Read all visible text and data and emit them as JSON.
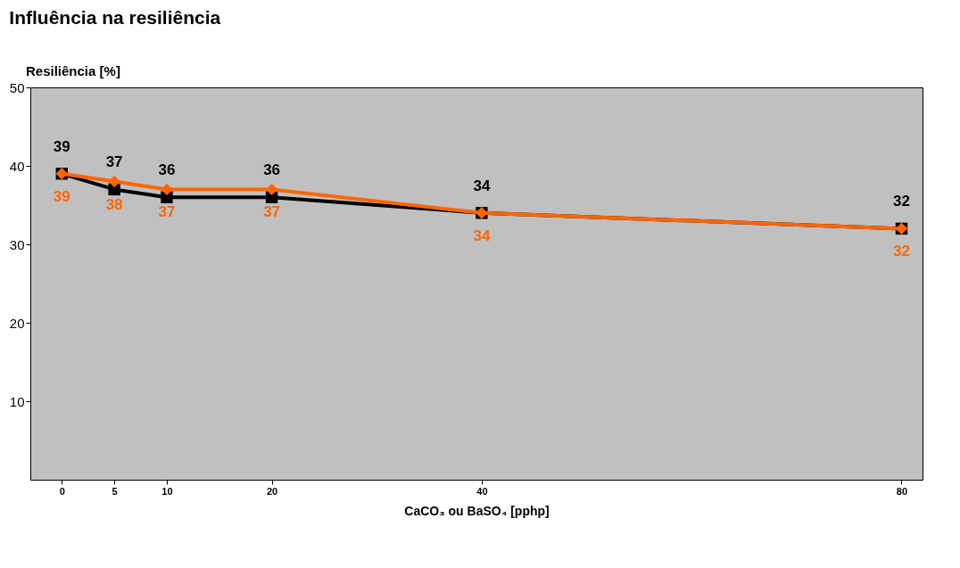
{
  "chart_data": {
    "type": "line",
    "title": "Influência na resiliência",
    "ylabel": "Resiliência [%]",
    "xlabel": "CaCO₃ ou BaSO₄ [pphp]",
    "x": [
      0,
      5,
      10,
      20,
      40,
      80
    ],
    "xlim": [
      -3,
      82
    ],
    "xticks": [
      0,
      5,
      10,
      20,
      40,
      80
    ],
    "ylim": [
      0,
      50
    ],
    "yticks": [
      10,
      20,
      30,
      40,
      50
    ],
    "series": [
      {
        "color": "#000000",
        "marker": "square",
        "values": [
          39,
          37,
          36,
          36,
          34,
          32
        ]
      },
      {
        "color": "#ff6600",
        "marker": "diamond",
        "values": [
          39,
          38,
          37,
          37,
          34,
          32
        ]
      }
    ],
    "data_labels": true,
    "grid": false,
    "line_style": "solid"
  }
}
